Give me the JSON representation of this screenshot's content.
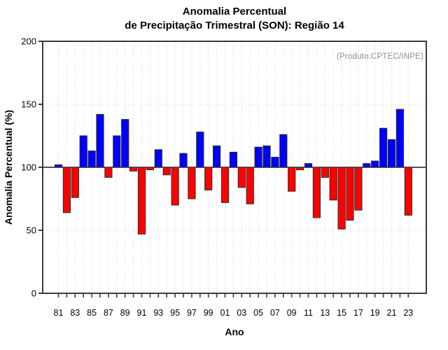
{
  "figure": {
    "title_line1": "Anomalia Percentual",
    "title_line2": "de Precipitação Trimestral (SON): Região 14",
    "annotation": "(Produto:CPTEC/INPE)"
  },
  "chart_data": {
    "type": "bar",
    "title": "Anomalia Percentual de Precipitação Trimestral (SON): Região 14",
    "xlabel": "Ano",
    "ylabel": "Anomalia Percentual (%)",
    "ylim": [
      0,
      200
    ],
    "yticks": [
      0,
      50,
      100,
      150,
      200
    ],
    "baseline": 100,
    "grid_horizontal_at": [
      50,
      150
    ],
    "grid_vertical": "every-year-dotted",
    "legend_position": "none",
    "bar_color_rule": "blue if value >= 100 else red",
    "positive_color": "#0000ff",
    "negative_color": "#ff0000",
    "bar_stroke_color": "#2b2b2b",
    "axis_color": "#3c3c3c",
    "grid_color": "#d8d8d8",
    "x_tick_labels_every": 2,
    "categories": [
      "81",
      "82",
      "83",
      "84",
      "85",
      "86",
      "87",
      "88",
      "89",
      "90",
      "91",
      "92",
      "93",
      "94",
      "95",
      "96",
      "97",
      "98",
      "99",
      "00",
      "01",
      "02",
      "03",
      "04",
      "05",
      "06",
      "07",
      "08",
      "09",
      "10",
      "11",
      "12",
      "13",
      "14",
      "15",
      "16",
      "17",
      "18",
      "19",
      "20",
      "21",
      "22",
      "23"
    ],
    "years": [
      1981,
      1982,
      1983,
      1984,
      1985,
      1986,
      1987,
      1988,
      1989,
      1990,
      1991,
      1992,
      1993,
      1994,
      1995,
      1996,
      1997,
      1998,
      1999,
      2000,
      2001,
      2002,
      2003,
      2004,
      2005,
      2006,
      2007,
      2008,
      2009,
      2010,
      2011,
      2012,
      2013,
      2014,
      2015,
      2016,
      2017,
      2018,
      2019,
      2020,
      2021,
      2022,
      2023
    ],
    "values": [
      102,
      64,
      76,
      125,
      113,
      142,
      92,
      125,
      138,
      97,
      47,
      98,
      114,
      94,
      70,
      111,
      75,
      128,
      82,
      117,
      72,
      112,
      84,
      71,
      116,
      117,
      108,
      126,
      81,
      98,
      103,
      60,
      92,
      74,
      51,
      58,
      66,
      103,
      105,
      131,
      122,
      146,
      62
    ]
  }
}
